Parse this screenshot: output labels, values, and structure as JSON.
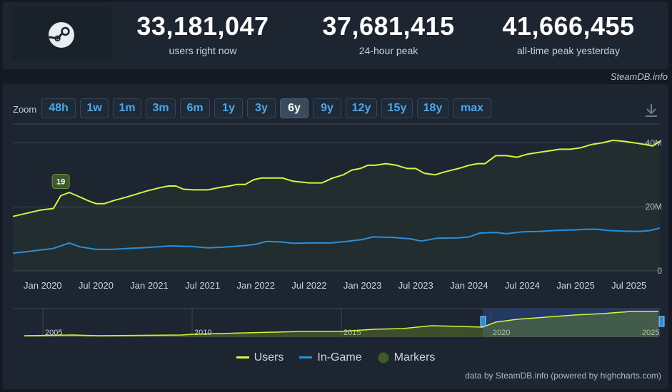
{
  "stats": [
    {
      "value": "33,181,047",
      "label": "users right now"
    },
    {
      "value": "37,681,415",
      "label": "24-hour peak"
    },
    {
      "value": "41,666,455",
      "label": "all-time peak yesterday"
    }
  ],
  "watermark": "SteamDB.info",
  "zoom": {
    "label": "Zoom",
    "buttons": [
      "48h",
      "1w",
      "1m",
      "3m",
      "6m",
      "1y",
      "3y",
      "6y",
      "9y",
      "12y",
      "15y",
      "18y",
      "max"
    ],
    "active": "6y"
  },
  "download_icon": "download-icon",
  "colors": {
    "users": "#d6f53f",
    "in_game": "#2a8fd8",
    "markers": "#3d5a2a",
    "accent": "#4da7e8"
  },
  "chart_data": {
    "type": "line",
    "x_ticks": [
      "Jan 2020",
      "Jul 2020",
      "Jan 2021",
      "Jul 2021",
      "Jan 2022",
      "Jul 2022",
      "Jan 2023",
      "Jul 2023",
      "Jan 2024",
      "Jul 2024",
      "Jan 2025",
      "Jul 2025"
    ],
    "y_ticks": [
      "0",
      "20M",
      "40M"
    ],
    "ylim": [
      0,
      45
    ],
    "xlim": [
      2019.72,
      2025.79
    ],
    "grid": true,
    "series": [
      {
        "name": "Users",
        "color": "#d6f53f",
        "x": [
          2019.72,
          2019.85,
          2019.98,
          2020.1,
          2020.17,
          2020.25,
          2020.32,
          2020.42,
          2020.5,
          2020.58,
          2020.67,
          2020.78,
          2020.88,
          2020.98,
          2021.1,
          2021.18,
          2021.25,
          2021.32,
          2021.42,
          2021.55,
          2021.65,
          2021.75,
          2021.82,
          2021.9,
          2021.98,
          2022.05,
          2022.15,
          2022.25,
          2022.35,
          2022.5,
          2022.62,
          2022.72,
          2022.82,
          2022.9,
          2022.98,
          2023.05,
          2023.12,
          2023.22,
          2023.32,
          2023.42,
          2023.5,
          2023.58,
          2023.68,
          2023.78,
          2023.9,
          2024.0,
          2024.08,
          2024.15,
          2024.25,
          2024.35,
          2024.45,
          2024.55,
          2024.65,
          2024.75,
          2024.85,
          2024.95,
          2025.05,
          2025.15,
          2025.25,
          2025.35,
          2025.45,
          2025.55,
          2025.65,
          2025.72,
          2025.79
        ],
        "values": [
          17.0,
          18.0,
          19.0,
          19.5,
          23.5,
          24.5,
          23.5,
          22,
          21,
          21,
          22,
          23,
          24,
          25,
          26,
          26.5,
          26.5,
          25.5,
          25.3,
          25.3,
          26,
          26.5,
          27,
          27,
          28.5,
          29,
          29,
          29,
          28,
          27.5,
          27.5,
          29,
          30,
          31.5,
          32,
          33,
          33,
          33.5,
          33,
          32,
          32,
          30.5,
          30,
          31,
          32,
          33,
          33.5,
          33.5,
          36,
          36,
          35.5,
          36.5,
          37,
          37.5,
          38,
          38,
          38.5,
          39.5,
          40,
          40.8,
          40.5,
          40,
          39.5,
          39,
          40.5
        ]
      },
      {
        "name": "In-Game",
        "color": "#2a8fd8",
        "x": [
          2019.72,
          2019.85,
          2019.98,
          2020.1,
          2020.25,
          2020.35,
          2020.5,
          2020.65,
          2020.8,
          2020.98,
          2021.2,
          2021.4,
          2021.55,
          2021.7,
          2021.9,
          2022.0,
          2022.1,
          2022.25,
          2022.35,
          2022.5,
          2022.7,
          2022.85,
          2023.0,
          2023.1,
          2023.3,
          2023.45,
          2023.55,
          2023.7,
          2023.9,
          2024.0,
          2024.1,
          2024.25,
          2024.35,
          2024.5,
          2024.65,
          2024.8,
          2025.0,
          2025.1,
          2025.2,
          2025.3,
          2025.45,
          2025.6,
          2025.7,
          2025.79
        ],
        "values": [
          5.5,
          6.0,
          6.5,
          7.0,
          8.7,
          7.5,
          6.7,
          6.7,
          7.0,
          7.3,
          7.8,
          7.6,
          7.2,
          7.4,
          7.9,
          8.3,
          9.2,
          9.0,
          8.6,
          8.7,
          8.7,
          9.2,
          9.8,
          10.6,
          10.4,
          10.0,
          9.3,
          10.2,
          10.3,
          10.6,
          11.8,
          12.0,
          11.6,
          12.2,
          12.3,
          12.6,
          12.8,
          13.0,
          13.0,
          12.6,
          12.4,
          12.3,
          12.6,
          13.4
        ]
      }
    ],
    "markers": [
      {
        "x": 2020.17,
        "label": "19"
      }
    ],
    "navigator": {
      "ticks": [
        "2005",
        "2010",
        "2015",
        "2020",
        "2025"
      ]
    },
    "legend": {
      "placement": "bottom-center",
      "items": [
        "Users",
        "In-Game",
        "Markers"
      ]
    },
    "credits": "data by SteamDB.info (powered by highcharts.com)"
  }
}
